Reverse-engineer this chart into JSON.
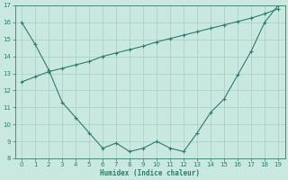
{
  "xlabel": "Humidex (Indice chaleur)",
  "line1_x": [
    0,
    1,
    2,
    3,
    4,
    5,
    6,
    7,
    8,
    9,
    10,
    11,
    12,
    13,
    14,
    15,
    16,
    17,
    18,
    19
  ],
  "line1_y": [
    16.0,
    14.7,
    13.2,
    11.3,
    10.4,
    9.5,
    8.6,
    8.9,
    8.4,
    8.6,
    9.0,
    8.6,
    8.4,
    9.5,
    10.7,
    11.5,
    12.9,
    14.3,
    16.0,
    17.0
  ],
  "line2_x": [
    0,
    1,
    2,
    3,
    4,
    5,
    6,
    7,
    8,
    9,
    10,
    11,
    12,
    13,
    14,
    15,
    16,
    17,
    18,
    19
  ],
  "line2_y": [
    12.5,
    12.8,
    13.1,
    13.3,
    13.5,
    13.7,
    14.0,
    14.2,
    14.4,
    14.6,
    14.85,
    15.05,
    15.25,
    15.45,
    15.65,
    15.85,
    16.05,
    16.25,
    16.5,
    16.8
  ],
  "line_color": "#2e7d6e",
  "bg_color": "#c8e8e0",
  "grid_color": "#a8ccc4",
  "xlim": [
    -0.5,
    19.5
  ],
  "ylim": [
    8,
    17
  ],
  "xticks": [
    0,
    1,
    2,
    3,
    4,
    5,
    6,
    7,
    8,
    9,
    10,
    11,
    12,
    13,
    14,
    15,
    16,
    17,
    18,
    19
  ],
  "yticks": [
    8,
    9,
    10,
    11,
    12,
    13,
    14,
    15,
    16,
    17
  ],
  "xlabel_fontsize": 5.5,
  "tick_fontsize": 5.0
}
